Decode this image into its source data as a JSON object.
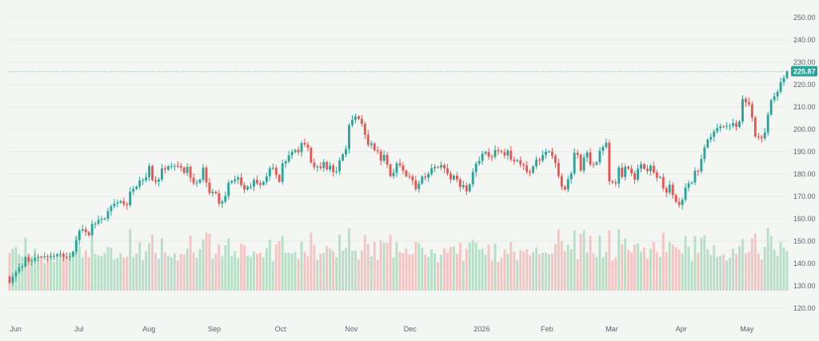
{
  "colors": {
    "background": "#f3f6f2",
    "up": "#26a69a",
    "down": "#ef5350",
    "up_volume": "#b7dfc7",
    "down_volume": "#f6c3c3",
    "grid": "#e6ebe6",
    "last_price_line": "#5fb8a7",
    "tag_bg": "#26a69a"
  },
  "chart_data": {
    "type": "candlestick",
    "title": "",
    "y_axis": {
      "side": "right",
      "range": [
        115,
        255
      ],
      "ticks": [
        120,
        130,
        140,
        150,
        160,
        170,
        180,
        190,
        200,
        210,
        220,
        230,
        240,
        250
      ],
      "tick_labels": [
        "120.00",
        "130.00",
        "140.00",
        "150.00",
        "160.00",
        "170.00",
        "180.00",
        "190.00",
        "200.00",
        "210.00",
        "220.00",
        "230.00",
        "240.00",
        "250.00"
      ]
    },
    "x_axis": {
      "labels": [
        "Jun",
        "Jul",
        "Aug",
        "Sep",
        "Oct",
        "Nov",
        "Dec",
        "2026",
        "Feb",
        "Mar",
        "Apr",
        "May"
      ],
      "label_positions": [
        0.6,
        20.9,
        42.4,
        63.0,
        84.1,
        106.2,
        124.7,
        146.8,
        167.9,
        188.3,
        210.4,
        230.7
      ]
    },
    "grid": true,
    "last_price": 225.87,
    "last_price_label": "225.87",
    "close": [
      131.4,
      134.1,
      136.2,
      138.3,
      138.8,
      142.8,
      140.9,
      141.3,
      142.5,
      143.0,
      142.9,
      143.2,
      142.8,
      143.1,
      143.4,
      144.1,
      144.3,
      143.0,
      142.9,
      143.2,
      145.3,
      150.4,
      154.7,
      155.3,
      154.0,
      152.6,
      157.7,
      157.9,
      159.5,
      159.9,
      160.1,
      163.4,
      165.6,
      166.8,
      167.3,
      167.9,
      166.6,
      166.1,
      172.2,
      173.4,
      174.4,
      177.1,
      177.3,
      178.6,
      183.6,
      177.3,
      176.6,
      177.6,
      182.5,
      182.0,
      183.5,
      183.6,
      183.7,
      183.6,
      182.9,
      180.5,
      183.2,
      178.4,
      175.9,
      176.2,
      177.5,
      182.9,
      176.2,
      171.5,
      172.1,
      171.4,
      166.8,
      167.7,
      170.2,
      176.1,
      176.8,
      177.6,
      178.5,
      175.1,
      173.1,
      174.4,
      174.4,
      177.4,
      175.9,
      175.2,
      176.5,
      179.0,
      182.6,
      182.8,
      179.6,
      176.6,
      184.8,
      185.7,
      188.4,
      189.9,
      190.8,
      189.8,
      193.9,
      193.2,
      191.8,
      185.2,
      183.1,
      183.4,
      182.7,
      185.4,
      182.1,
      183.8,
      180.9,
      181.3,
      186.1,
      188.8,
      191.2,
      201.9,
      204.3,
      205.8,
      204.7,
      202.5,
      197.6,
      193.1,
      193.7,
      190.7,
      190.2,
      186.0,
      188.6,
      184.3,
      179.1,
      180.6,
      184.8,
      183.9,
      181.5,
      179.1,
      179.0,
      177.1,
      173.3,
      175.8,
      178.9,
      178.4,
      180.1,
      182.6,
      183.2,
      183.0,
      184.0,
      182.5,
      180.2,
      177.6,
      179.3,
      177.6,
      174.2,
      175.0,
      172.3,
      175.4,
      180.9,
      184.7,
      185.9,
      189.1,
      189.9,
      187.8,
      187.7,
      190.8,
      190.3,
      189.8,
      188.3,
      190.5,
      186.5,
      185.8,
      186.2,
      184.3,
      183.8,
      181.0,
      180.6,
      183.5,
      186.5,
      186.1,
      188.5,
      190.0,
      190.1,
      188.1,
      184.9,
      179.1,
      174.4,
      173.1,
      177.7,
      180.3,
      189.5,
      188.6,
      181.6,
      187.4,
      189.7,
      184.4,
      184.3,
      185.3,
      190.4,
      192.1,
      194.0,
      176.8,
      176.2,
      175.8,
      182.9,
      178.7,
      183.3,
      182.4,
      180.4,
      177.5,
      182.4,
      184.4,
      182.4,
      181.3,
      183.7,
      180.7,
      178.4,
      178.7,
      173.7,
      171.7,
      175.2,
      170.6,
      167.6,
      166.2,
      168.5,
      174.0,
      175.9,
      176.2,
      181.4,
      181.2,
      186.8,
      191.9,
      195.4,
      196.6,
      199.1,
      200.6,
      201.3,
      201.2,
      201.6,
      201.6,
      202.8,
      201.1,
      203.6,
      213.6,
      212.1,
      211.2,
      205.3,
      196.8,
      196.6,
      196.0,
      198.6,
      206.6,
      213.1,
      214.8,
      216.8,
      221.1,
      223.0,
      225.87
    ],
    "open": [
      134.1,
      131.4,
      134.1,
      136.2,
      138.3,
      138.8,
      142.8,
      140.9,
      141.3,
      142.5,
      143.0,
      142.9,
      143.2,
      142.8,
      143.1,
      143.4,
      144.1,
      144.3,
      143.0,
      142.9,
      143.2,
      145.3,
      150.4,
      154.7,
      155.3,
      154.0,
      152.6,
      157.7,
      157.9,
      159.5,
      159.9,
      160.1,
      163.4,
      165.6,
      166.8,
      167.3,
      167.9,
      166.6,
      166.1,
      172.2,
      173.4,
      174.4,
      177.1,
      177.3,
      178.6,
      183.6,
      177.3,
      176.6,
      177.6,
      182.5,
      182.0,
      183.5,
      183.6,
      183.7,
      183.6,
      182.9,
      180.5,
      183.2,
      178.4,
      175.9,
      176.2,
      177.5,
      182.9,
      176.2,
      171.5,
      172.1,
      171.4,
      166.8,
      167.7,
      170.2,
      176.1,
      176.8,
      177.6,
      178.5,
      175.1,
      173.1,
      174.4,
      174.4,
      177.4,
      175.9,
      175.2,
      176.5,
      179.0,
      182.6,
      182.8,
      179.6,
      176.6,
      184.8,
      185.7,
      188.4,
      189.9,
      190.8,
      189.8,
      193.9,
      193.2,
      191.8,
      185.2,
      183.1,
      183.4,
      182.7,
      185.4,
      182.1,
      183.8,
      180.9,
      181.3,
      186.1,
      188.8,
      191.2,
      201.9,
      204.3,
      205.8,
      204.7,
      202.5,
      197.6,
      193.1,
      193.7,
      190.7,
      190.2,
      186.0,
      188.6,
      184.3,
      179.1,
      180.6,
      184.8,
      183.9,
      181.5,
      179.1,
      179.0,
      177.1,
      173.3,
      175.8,
      178.9,
      178.4,
      180.1,
      182.6,
      183.2,
      183.0,
      184.0,
      182.5,
      180.2,
      177.6,
      179.3,
      177.6,
      174.2,
      175.0,
      172.3,
      175.4,
      180.9,
      184.7,
      185.9,
      189.1,
      189.9,
      187.8,
      187.7,
      190.8,
      190.3,
      189.8,
      188.3,
      190.5,
      186.5,
      185.8,
      186.2,
      184.3,
      183.8,
      181.0,
      180.6,
      183.5,
      186.5,
      186.1,
      188.5,
      190.0,
      190.1,
      188.1,
      184.9,
      179.1,
      174.4,
      173.1,
      177.7,
      180.3,
      189.5,
      188.6,
      181.6,
      187.4,
      189.7,
      184.4,
      184.3,
      185.3,
      190.4,
      192.1,
      194.0,
      176.8,
      176.2,
      175.8,
      182.9,
      178.7,
      183.3,
      182.4,
      180.4,
      177.5,
      182.4,
      184.4,
      182.4,
      181.3,
      183.7,
      180.7,
      178.4,
      178.7,
      173.7,
      171.7,
      175.2,
      170.6,
      167.6,
      166.2,
      168.5,
      174.0,
      175.9,
      176.2,
      181.4,
      181.2,
      186.8,
      191.9,
      195.4,
      196.6,
      199.1,
      200.6,
      201.3,
      201.2,
      201.6,
      201.6,
      202.8,
      201.1,
      203.6,
      213.6,
      212.1,
      211.2,
      205.3,
      196.8,
      196.6,
      196.0,
      198.6,
      206.6,
      213.1,
      214.8,
      216.8,
      221.1,
      223.0
    ],
    "volume_scale": 0.6
  }
}
